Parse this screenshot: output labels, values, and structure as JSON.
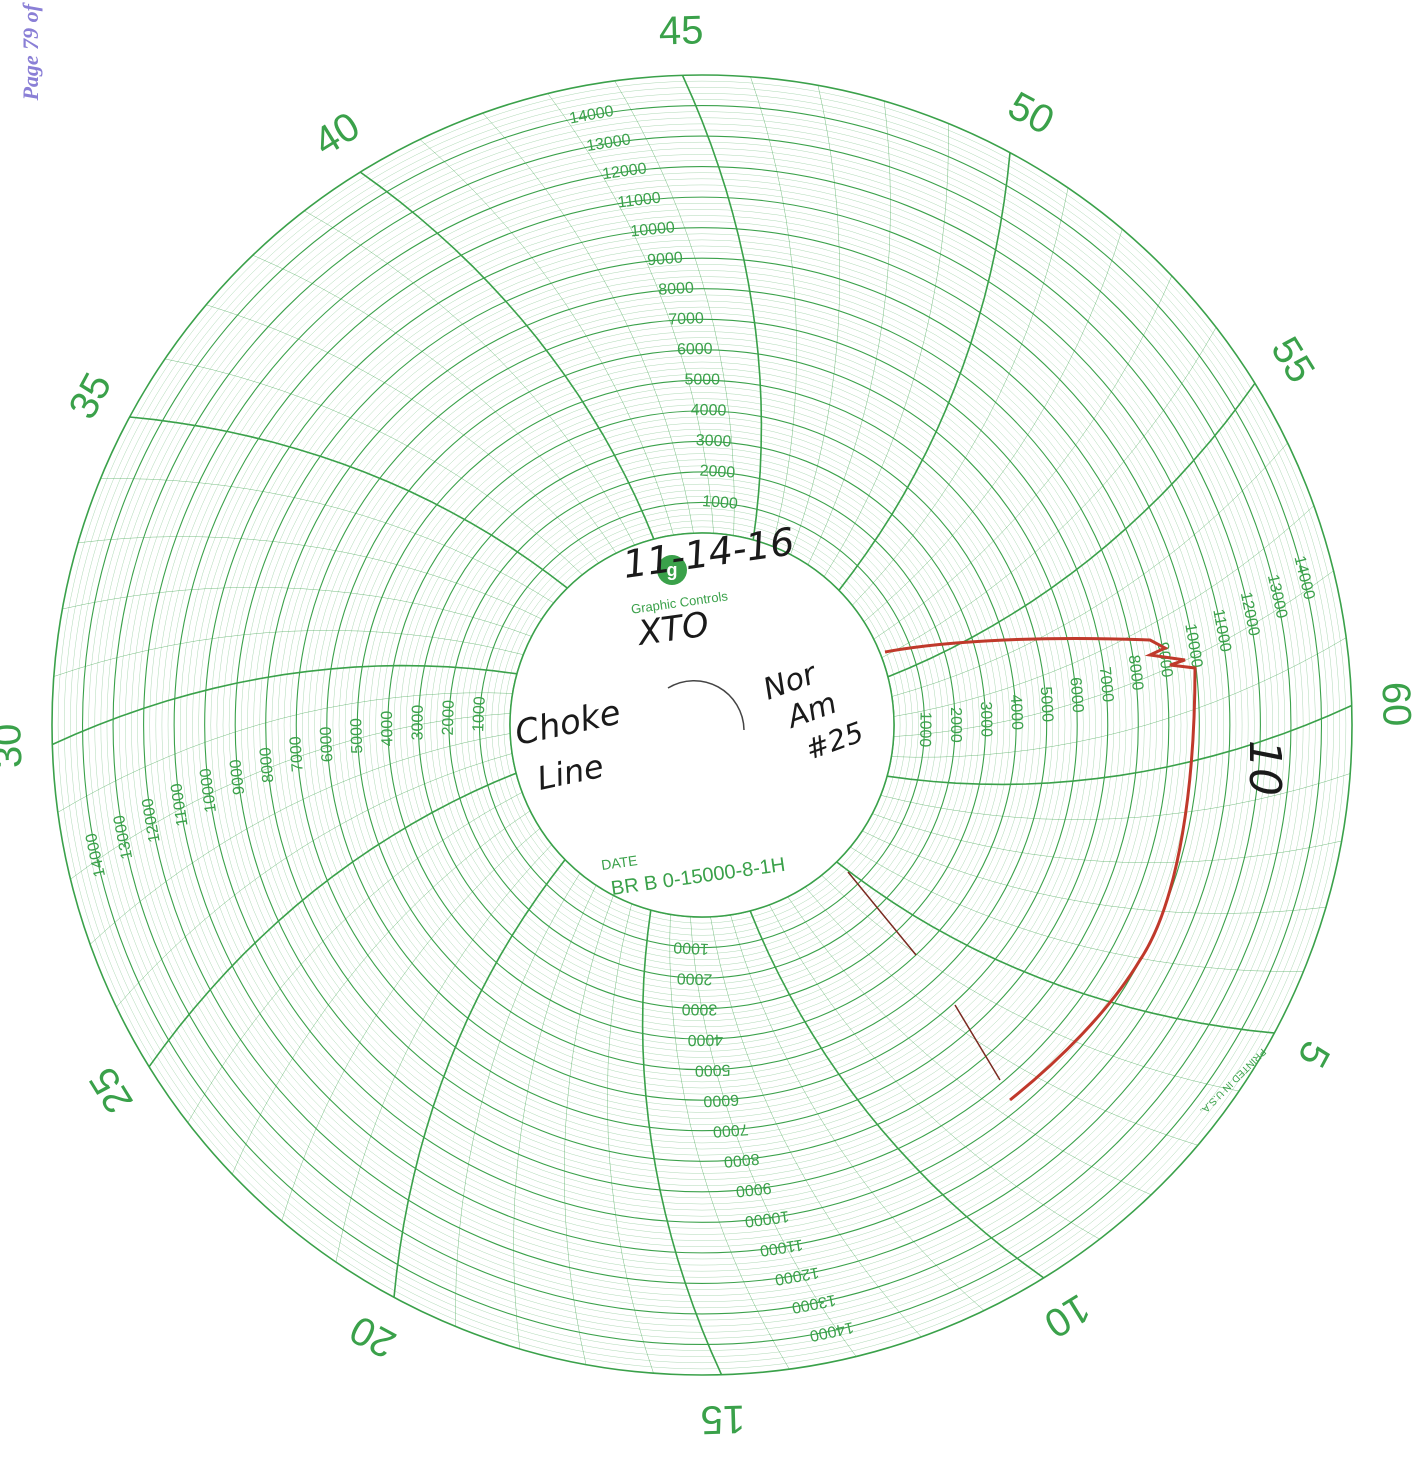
{
  "page_label": "Page 79 of",
  "chart_data": {
    "type": "circular-chart",
    "colors": {
      "grid": "#3aa14a",
      "trace": "#c0392b",
      "ink": "#1a1a1a",
      "page_label": "#8a7fd6"
    },
    "time_labels": [
      "45",
      "50",
      "55",
      "60",
      "5",
      "10",
      "15",
      "20",
      "25",
      "30",
      "35",
      "40"
    ],
    "pressure_scale": [
      "1000",
      "2000",
      "3000",
      "4000",
      "5000",
      "6000",
      "7000",
      "8000",
      "9000",
      "10000",
      "11000",
      "12000",
      "13000",
      "14000"
    ],
    "center": {
      "brand": "Graphic Controls",
      "date_label": "DATE",
      "chart_code": "BR B 0-15000-8-1H",
      "printed": "PRINTED IN U.S.A."
    },
    "handwritten": {
      "date": "11-14-16",
      "company": "XTO",
      "line": [
        "Choke",
        "Line"
      ],
      "well": [
        "Nor",
        "Am",
        "#25"
      ],
      "marker": "10"
    }
  }
}
